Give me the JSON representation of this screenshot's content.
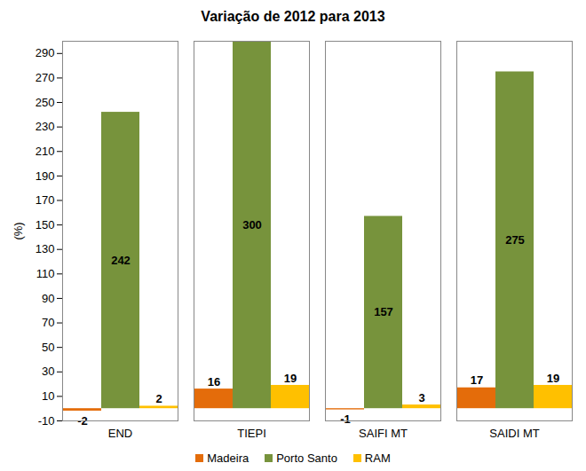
{
  "chart_data": {
    "type": "bar",
    "title": "Variação de 2012 para 2013",
    "y_label": "(%)",
    "categories": [
      "END",
      "TIEPI",
      "SAIFI MT",
      "SAIDI MT"
    ],
    "series": [
      {
        "name": "Madeira",
        "color": "#E46C0A",
        "values": [
          -2,
          16,
          -1,
          17
        ]
      },
      {
        "name": "Porto Santo",
        "color": "#77933C",
        "values": [
          242,
          300,
          157,
          275
        ]
      },
      {
        "name": "RAM",
        "color": "#FFC000",
        "values": [
          2,
          19,
          3,
          19
        ]
      }
    ],
    "ylim": [
      -10,
      300
    ],
    "yticks": [
      -10,
      10,
      30,
      50,
      70,
      90,
      110,
      130,
      150,
      170,
      190,
      210,
      230,
      250,
      270,
      290
    ],
    "grid": false,
    "legend": "bottom",
    "data_labels": true
  }
}
